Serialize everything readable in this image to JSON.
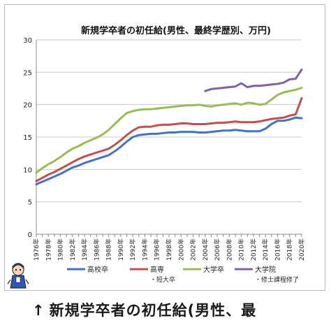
{
  "caption": {
    "arrow": "↑",
    "text": "新規学卒者の初任給(男性、最"
  },
  "chart_data": {
    "type": "line",
    "title": "新規学卒者の初任給(男性、最終学歴別、万円)",
    "xlabel": "",
    "ylabel": "",
    "xlim": [
      1976,
      2020
    ],
    "ylim": [
      0,
      30
    ],
    "yticks": [
      0,
      5,
      10,
      15,
      20,
      25,
      30
    ],
    "xtick_labels": [
      "1976年",
      "1978年",
      "1980年",
      "1982年",
      "1984年",
      "1986年",
      "1988年",
      "1990年",
      "1992年",
      "1994年",
      "1996年",
      "1998年",
      "2000年",
      "2002年",
      "2004年",
      "2006年",
      "2008年",
      "2010年",
      "2012年",
      "2014年",
      "2016年",
      "2018年",
      "2020年"
    ],
    "grid": true,
    "legend_position": "bottom",
    "x": [
      1976,
      1977,
      1978,
      1979,
      1980,
      1981,
      1982,
      1983,
      1984,
      1985,
      1986,
      1987,
      1988,
      1989,
      1990,
      1991,
      1992,
      1993,
      1994,
      1995,
      1996,
      1997,
      1998,
      1999,
      2000,
      2001,
      2002,
      2003,
      2004,
      2005,
      2006,
      2007,
      2008,
      2009,
      2010,
      2011,
      2012,
      2013,
      2014,
      2015,
      2016,
      2017,
      2018,
      2019,
      2020
    ],
    "series": [
      {
        "name": "高校卒",
        "sublabel": "",
        "color": "#4472c4",
        "values": [
          7.7,
          8.1,
          8.5,
          8.9,
          9.3,
          9.8,
          10.3,
          10.6,
          11.0,
          11.3,
          11.6,
          11.9,
          12.2,
          12.8,
          13.5,
          14.3,
          15.0,
          15.3,
          15.4,
          15.5,
          15.5,
          15.6,
          15.7,
          15.7,
          15.8,
          15.8,
          15.8,
          15.7,
          15.7,
          15.8,
          15.9,
          16.0,
          16.0,
          16.1,
          16.0,
          15.9,
          15.9,
          15.9,
          16.3,
          17.0,
          17.5,
          17.5,
          17.7,
          18.0,
          17.9
        ]
      },
      {
        "name": "高専",
        "sublabel": "・短大卒",
        "color": "#c0504d",
        "values": [
          8.2,
          8.7,
          9.2,
          9.6,
          10.1,
          10.6,
          11.1,
          11.6,
          12.0,
          12.3,
          12.6,
          12.9,
          13.2,
          13.8,
          14.5,
          15.3,
          16.0,
          16.5,
          16.6,
          16.6,
          16.8,
          16.9,
          16.9,
          17.0,
          17.1,
          17.1,
          17.0,
          17.0,
          17.0,
          17.1,
          17.2,
          17.2,
          17.3,
          17.4,
          17.3,
          17.3,
          17.3,
          17.4,
          17.6,
          17.8,
          17.9,
          18.0,
          18.3,
          18.5,
          21.0
        ]
      },
      {
        "name": "大学卒",
        "sublabel": "",
        "color": "#9bbb59",
        "values": [
          9.5,
          10.2,
          10.8,
          11.3,
          11.9,
          12.6,
          13.2,
          13.6,
          14.1,
          14.5,
          14.9,
          15.4,
          16.1,
          17.0,
          17.9,
          18.7,
          19.0,
          19.2,
          19.3,
          19.3,
          19.4,
          19.5,
          19.6,
          19.7,
          19.8,
          19.9,
          19.9,
          20.0,
          19.8,
          19.7,
          19.9,
          20.0,
          20.1,
          20.2,
          20.0,
          20.3,
          20.2,
          20.0,
          20.1,
          20.8,
          21.5,
          21.9,
          22.1,
          22.3,
          22.6
        ]
      },
      {
        "name": "大学院",
        "sublabel": "・修士課程修了",
        "color": "#8064a2",
        "values": [
          null,
          null,
          null,
          null,
          null,
          null,
          null,
          null,
          null,
          null,
          null,
          null,
          null,
          null,
          null,
          null,
          null,
          null,
          null,
          null,
          null,
          null,
          null,
          null,
          null,
          null,
          null,
          null,
          22.1,
          22.4,
          22.5,
          22.6,
          22.7,
          22.8,
          23.3,
          22.7,
          22.9,
          22.9,
          23.0,
          23.1,
          23.2,
          23.4,
          23.9,
          24.0,
          25.4
        ]
      }
    ]
  },
  "mascot": {
    "icon": "cartoon-character-icon"
  }
}
